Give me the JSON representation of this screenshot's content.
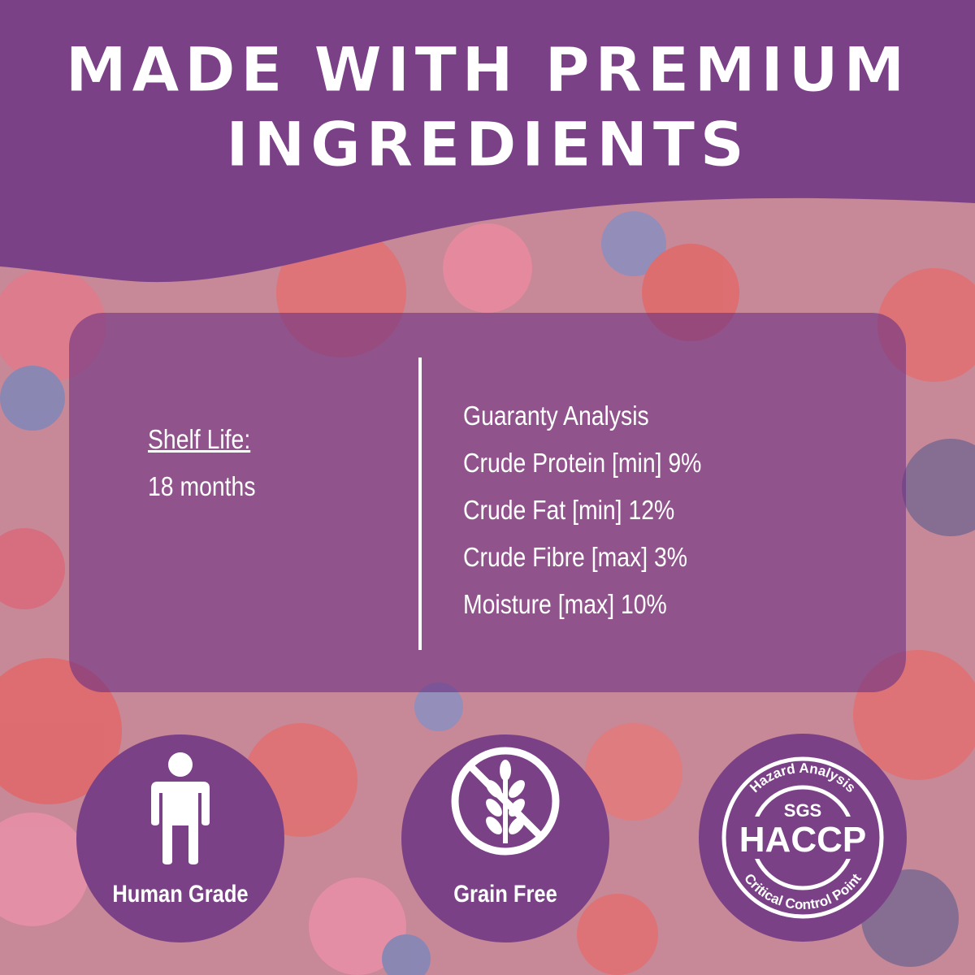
{
  "header": {
    "title_line1": "MADE WITH PREMIUM",
    "title_line2": "INGREDIENTS"
  },
  "shelf_life": {
    "label": "Shelf Life:",
    "value": "18 months"
  },
  "analysis": {
    "heading": "Guaranty Analysis",
    "items": [
      "Crude Protein [min] 9%",
      "Crude Fat [min] 12%",
      "Crude Fibre [max] 3%",
      "Moisture [max] 10%"
    ]
  },
  "badges": [
    {
      "label": "Human Grade",
      "icon": "person-icon"
    },
    {
      "label": "Grain Free",
      "icon": "no-grain-icon"
    },
    {
      "icon": "haccp-seal-icon",
      "seal_text_top": "Hazard Analysis",
      "seal_text_mid": "SGS",
      "seal_text_main": "HACCP",
      "seal_text_bottom": "Critical Control Point"
    }
  ],
  "colors": {
    "brand_purple": "#7b4187",
    "text": "#ffffff"
  }
}
